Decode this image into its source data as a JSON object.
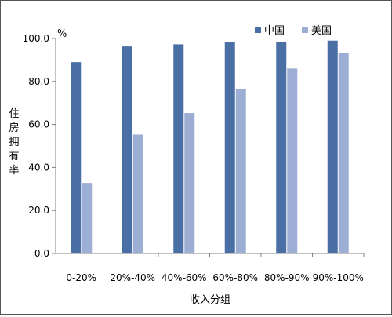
{
  "chart_data": {
    "type": "bar",
    "categories": [
      "0-20%",
      "20%-40%",
      "40%-60%",
      "60%-80%",
      "80%-90%",
      "90%-100%"
    ],
    "series": [
      {
        "name": "中国",
        "values": [
          89,
          96.3,
          97.3,
          98.3,
          98.3,
          99
        ],
        "color": "#4a6fa5"
      },
      {
        "name": "美国",
        "values": [
          32.8,
          55.3,
          65.3,
          76.4,
          86,
          93.2
        ],
        "color": "#9daed4"
      }
    ],
    "title": "",
    "xlabel": "收入分组",
    "ylabel": "住房拥有率",
    "y_unit": "%",
    "ylim": [
      0,
      100
    ],
    "yticks": [
      "0.0",
      "20.0",
      "40.0",
      "60.0",
      "80.0",
      "100.0"
    ],
    "grid": false,
    "legend_position": "top-right"
  }
}
